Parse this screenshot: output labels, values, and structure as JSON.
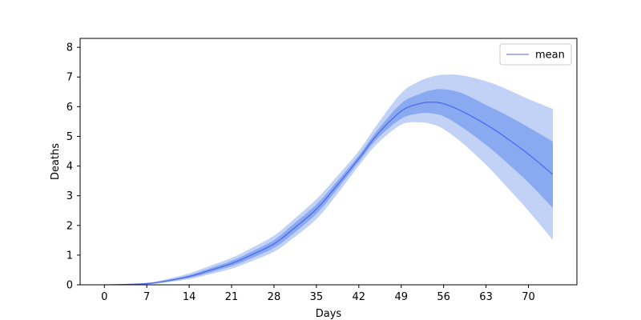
{
  "chart_data": {
    "type": "area",
    "title": "",
    "xlabel": "Days",
    "ylabel": "Deaths",
    "xlim": [
      -4,
      78
    ],
    "ylim": [
      0,
      8.3
    ],
    "xticks": [
      0,
      7,
      14,
      21,
      28,
      35,
      42,
      49,
      56,
      63,
      70
    ],
    "xtick_labels": [
      "0",
      "7",
      "14",
      "21",
      "28",
      "35",
      "42",
      "49",
      "56",
      "63",
      "70"
    ],
    "yticks": [
      0,
      1,
      2,
      3,
      4,
      5,
      6,
      7,
      8
    ],
    "ytick_labels": [
      "0",
      "1",
      "2",
      "3",
      "4",
      "5",
      "6",
      "7",
      "8"
    ],
    "grid": false,
    "legend": {
      "position": "top-right",
      "entries": [
        "mean"
      ]
    },
    "colors": {
      "mean_line": "#4d63ee",
      "inner_band": "#89aaf0",
      "outer_band": "#c1d2f6",
      "axes": "#000000"
    },
    "x": [
      0,
      3,
      7,
      10,
      14,
      17,
      21,
      24,
      28,
      31,
      35,
      38,
      42,
      45,
      49,
      52,
      54,
      56,
      59,
      63,
      66,
      70,
      74
    ],
    "series": [
      {
        "name": "mean",
        "role": "line",
        "values": [
          0,
          0.01,
          0.04,
          0.12,
          0.28,
          0.46,
          0.72,
          0.98,
          1.38,
          1.85,
          2.55,
          3.25,
          4.25,
          5.05,
          5.85,
          6.1,
          6.15,
          6.1,
          5.85,
          5.4,
          5.0,
          4.4,
          3.72
        ]
      },
      {
        "name": "",
        "role": "inner-band-lower",
        "values": [
          0,
          0.01,
          0.03,
          0.1,
          0.24,
          0.4,
          0.64,
          0.88,
          1.25,
          1.7,
          2.4,
          3.12,
          4.15,
          4.92,
          5.6,
          5.78,
          5.78,
          5.68,
          5.32,
          4.72,
          4.2,
          3.45,
          2.6
        ]
      },
      {
        "name": "",
        "role": "inner-band-upper",
        "values": [
          0,
          0.01,
          0.05,
          0.14,
          0.32,
          0.52,
          0.8,
          1.08,
          1.5,
          2.0,
          2.7,
          3.38,
          4.35,
          5.18,
          6.1,
          6.42,
          6.55,
          6.58,
          6.45,
          6.05,
          5.75,
          5.3,
          4.82
        ]
      },
      {
        "name": "",
        "role": "outer-band-lower",
        "values": [
          0,
          0.01,
          0.02,
          0.08,
          0.2,
          0.34,
          0.55,
          0.78,
          1.12,
          1.55,
          2.22,
          2.95,
          4.02,
          4.75,
          5.4,
          5.48,
          5.42,
          5.25,
          4.8,
          4.05,
          3.4,
          2.5,
          1.52
        ]
      },
      {
        "name": "",
        "role": "outer-band-upper",
        "values": [
          0,
          0.02,
          0.06,
          0.17,
          0.38,
          0.6,
          0.9,
          1.2,
          1.65,
          2.15,
          2.88,
          3.55,
          4.5,
          5.38,
          6.45,
          6.85,
          7.0,
          7.07,
          7.05,
          6.85,
          6.62,
          6.25,
          5.92
        ]
      }
    ]
  }
}
